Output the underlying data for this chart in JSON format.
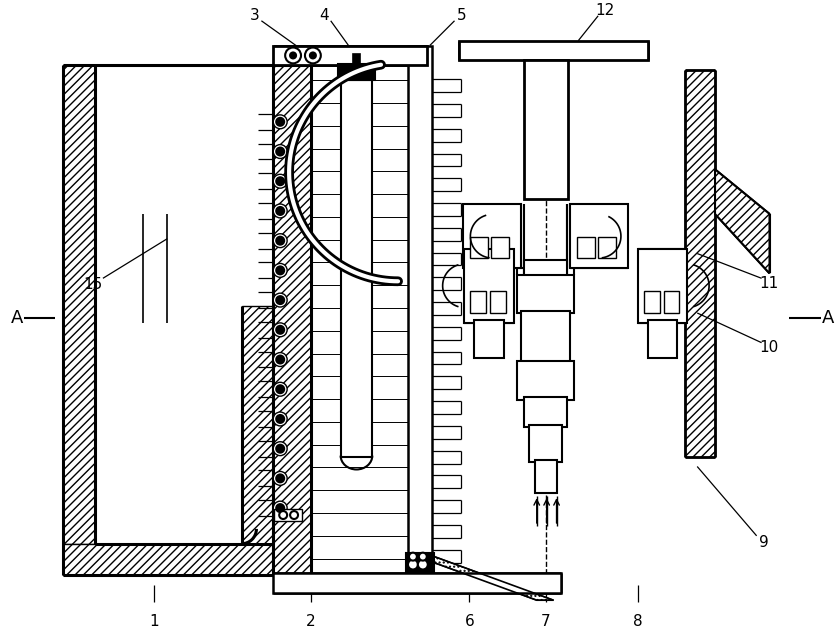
{
  "bg_color": "#ffffff",
  "line_color": "#000000",
  "lw_main": 1.8,
  "lw_thick": 2.5,
  "lw_thin": 0.8,
  "figsize": [
    8.37,
    6.34
  ],
  "dpi": 100
}
